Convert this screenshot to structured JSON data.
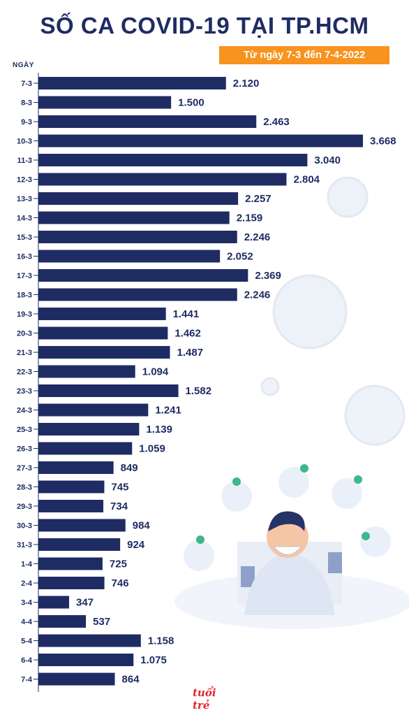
{
  "title": "SỐ CA COVID-19 TẠI TP.HCM",
  "subtitle": "Từ ngày 7-3 đến 7-4-2022",
  "colors": {
    "bar": "#1f2c63",
    "accent": "#f7931e",
    "text": "#1f2c63"
  },
  "logo": "tuổi trẻ",
  "chart_data": {
    "type": "bar",
    "orientation": "horizontal",
    "title": "SỐ CA COVID-19 TẠI TP.HCM",
    "subtitle": "Từ ngày 7-3 đến 7-4-2022",
    "ylabel": "NGÀY",
    "categories": [
      "7-3",
      "8-3",
      "9-3",
      "10-3",
      "11-3",
      "12-3",
      "13-3",
      "14-3",
      "15-3",
      "16-3",
      "17-3",
      "18-3",
      "19-3",
      "20-3",
      "21-3",
      "22-3",
      "23-3",
      "24-3",
      "25-3",
      "26-3",
      "27-3",
      "28-3",
      "29-3",
      "30-3",
      "31-3",
      "1-4",
      "2-4",
      "3-4",
      "4-4",
      "5-4",
      "6-4",
      "7-4"
    ],
    "values": [
      2120,
      1500,
      2463,
      3668,
      3040,
      2804,
      2257,
      2159,
      2246,
      2052,
      2369,
      2246,
      1441,
      1462,
      1487,
      1094,
      1582,
      1241,
      1139,
      1059,
      849,
      745,
      734,
      984,
      924,
      725,
      746,
      347,
      537,
      1158,
      1075,
      864
    ],
    "value_labels": [
      "2.120",
      "1.500",
      "2.463",
      "3.668",
      "3.040",
      "2.804",
      "2.257",
      "2.159",
      "2.246",
      "2.052",
      "2.369",
      "2.246",
      "1.441",
      "1.462",
      "1.487",
      "1.094",
      "1.582",
      "1.241",
      "1.139",
      "1.059",
      "849",
      "745",
      "734",
      "984",
      "924",
      "725",
      "746",
      "347",
      "537",
      "1.158",
      "1.075",
      "864"
    ],
    "grid": false
  }
}
